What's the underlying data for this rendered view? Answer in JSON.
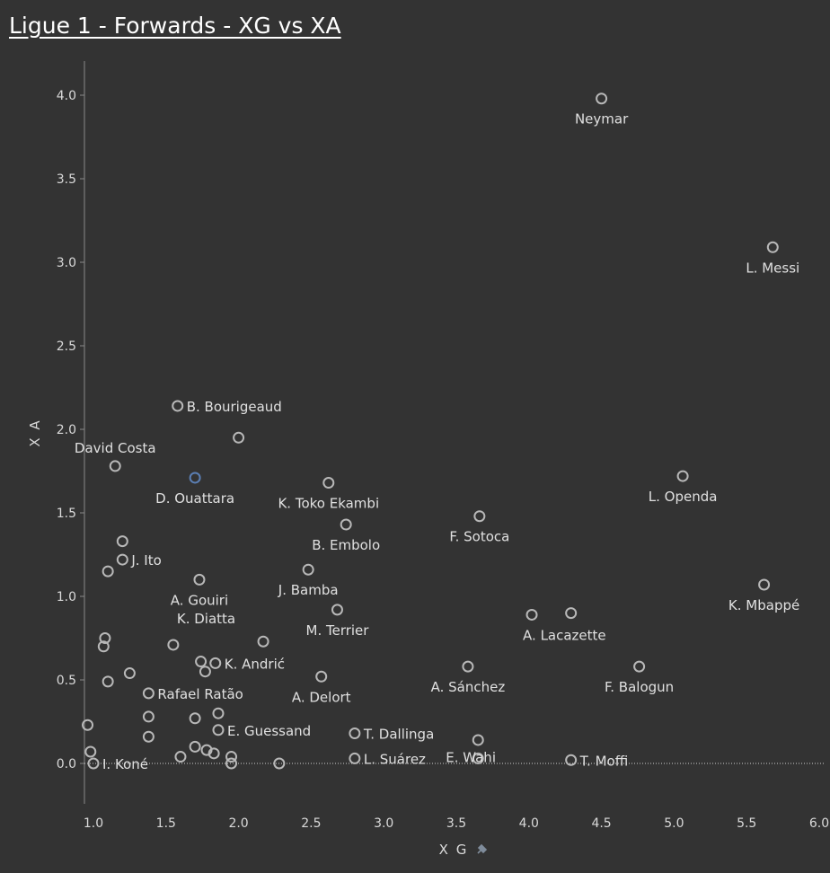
{
  "chart_data": {
    "type": "scatter",
    "title": "Ligue 1 - Forwards - XG vs XA",
    "xlabel": "X G",
    "ylabel": "X A",
    "xlim": [
      0.95,
      6.05
    ],
    "ylim": [
      -0.18,
      4.2
    ],
    "xticks": [
      "1.0",
      "1.5",
      "2.0",
      "2.5",
      "3.0",
      "3.5",
      "4.0",
      "4.5",
      "5.0",
      "5.5",
      "6.0"
    ],
    "yticks": [
      "0.0",
      "0.5",
      "1.0",
      "1.5",
      "2.0",
      "2.5",
      "3.0",
      "3.5",
      "4.0"
    ],
    "grid": false,
    "zero_line": true,
    "colors": {
      "marker": "#b8b8b8",
      "highlight": "#5b7fb4",
      "background": "#333333"
    },
    "points": [
      {
        "x": 4.5,
        "y": 3.98,
        "label": "Neymar",
        "pos": "below"
      },
      {
        "x": 5.68,
        "y": 3.09,
        "label": "L. Messi",
        "pos": "below"
      },
      {
        "x": 1.58,
        "y": 2.14,
        "label": "B. Bourigeaud",
        "pos": "right"
      },
      {
        "x": 2.0,
        "y": 1.95,
        "label": "",
        "pos": "none"
      },
      {
        "x": 1.15,
        "y": 1.78,
        "label": "David Costa",
        "pos": "above"
      },
      {
        "x": 1.7,
        "y": 1.71,
        "label": "D. Ouattara",
        "pos": "below",
        "highlight": true
      },
      {
        "x": 2.62,
        "y": 1.68,
        "label": "K. Toko Ekambi",
        "pos": "below"
      },
      {
        "x": 5.06,
        "y": 1.72,
        "label": "L. Openda",
        "pos": "below"
      },
      {
        "x": 2.74,
        "y": 1.43,
        "label": "B. Embolo",
        "pos": "below"
      },
      {
        "x": 3.66,
        "y": 1.48,
        "label": "F. Sotoca",
        "pos": "below"
      },
      {
        "x": 1.2,
        "y": 1.33,
        "label": "",
        "pos": "none"
      },
      {
        "x": 1.2,
        "y": 1.22,
        "label": "J. Ito",
        "pos": "right"
      },
      {
        "x": 1.1,
        "y": 1.15,
        "label": "",
        "pos": "none"
      },
      {
        "x": 1.73,
        "y": 1.1,
        "label": "A. Gouiri",
        "pos": "below"
      },
      {
        "x": 2.48,
        "y": 1.16,
        "label": "J. Bamba",
        "pos": "below"
      },
      {
        "x": 5.62,
        "y": 1.07,
        "label": "K. Mbappé",
        "pos": "below"
      },
      {
        "x": 2.68,
        "y": 0.92,
        "label": "M. Terrier",
        "pos": "below"
      },
      {
        "x": 4.02,
        "y": 0.89,
        "label": "A. Lacazette",
        "pos": "below-right"
      },
      {
        "x": 4.29,
        "y": 0.9,
        "label": "",
        "pos": "none"
      },
      {
        "x": 1.08,
        "y": 0.75,
        "label": "",
        "pos": "none"
      },
      {
        "x": 1.07,
        "y": 0.7,
        "label": "",
        "pos": "none"
      },
      {
        "x": 1.55,
        "y": 0.71,
        "label": "K. Diatta",
        "pos": "above-right"
      },
      {
        "x": 2.17,
        "y": 0.73,
        "label": "",
        "pos": "none"
      },
      {
        "x": 1.74,
        "y": 0.61,
        "label": "",
        "pos": "none"
      },
      {
        "x": 1.84,
        "y": 0.6,
        "label": "K. Andrić",
        "pos": "right"
      },
      {
        "x": 1.77,
        "y": 0.55,
        "label": "",
        "pos": "none"
      },
      {
        "x": 1.25,
        "y": 0.54,
        "label": "",
        "pos": "none"
      },
      {
        "x": 1.1,
        "y": 0.49,
        "label": "",
        "pos": "none"
      },
      {
        "x": 2.57,
        "y": 0.52,
        "label": "A. Delort",
        "pos": "below"
      },
      {
        "x": 3.58,
        "y": 0.58,
        "label": "A. Sánchez",
        "pos": "below"
      },
      {
        "x": 4.76,
        "y": 0.58,
        "label": "F. Balogun",
        "pos": "below"
      },
      {
        "x": 1.38,
        "y": 0.42,
        "label": "Rafael Ratão",
        "pos": "right"
      },
      {
        "x": 1.86,
        "y": 0.3,
        "label": "",
        "pos": "none"
      },
      {
        "x": 1.38,
        "y": 0.28,
        "label": "",
        "pos": "none"
      },
      {
        "x": 1.7,
        "y": 0.27,
        "label": "",
        "pos": "none"
      },
      {
        "x": 0.96,
        "y": 0.23,
        "label": "",
        "pos": "none"
      },
      {
        "x": 1.86,
        "y": 0.2,
        "label": "E. Guessand",
        "pos": "right"
      },
      {
        "x": 1.38,
        "y": 0.16,
        "label": "",
        "pos": "none"
      },
      {
        "x": 2.8,
        "y": 0.18,
        "label": "T. Dallinga",
        "pos": "right"
      },
      {
        "x": 3.65,
        "y": 0.14,
        "label": "",
        "pos": "none"
      },
      {
        "x": 1.7,
        "y": 0.1,
        "label": "",
        "pos": "none"
      },
      {
        "x": 1.78,
        "y": 0.08,
        "label": "",
        "pos": "none"
      },
      {
        "x": 1.83,
        "y": 0.06,
        "label": "",
        "pos": "none"
      },
      {
        "x": 0.98,
        "y": 0.07,
        "label": "",
        "pos": "none"
      },
      {
        "x": 1.6,
        "y": 0.04,
        "label": "",
        "pos": "none"
      },
      {
        "x": 1.95,
        "y": 0.04,
        "label": "",
        "pos": "none"
      },
      {
        "x": 1.95,
        "y": 0.0,
        "label": "",
        "pos": "none"
      },
      {
        "x": 1.0,
        "y": 0.0,
        "label": "I. Koné",
        "pos": "right"
      },
      {
        "x": 2.28,
        "y": 0.0,
        "label": "",
        "pos": "none"
      },
      {
        "x": 2.8,
        "y": 0.03,
        "label": "L. Suárez",
        "pos": "right"
      },
      {
        "x": 3.65,
        "y": 0.03,
        "label": "E. Wahi",
        "pos": "left-bottom"
      },
      {
        "x": 4.29,
        "y": 0.02,
        "label": "T. Moffi",
        "pos": "right"
      }
    ]
  }
}
